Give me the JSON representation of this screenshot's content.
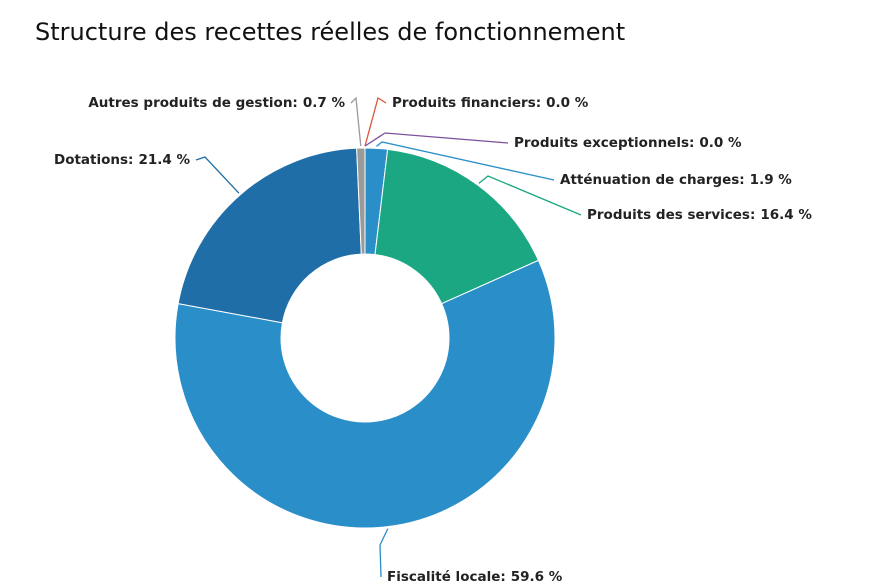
{
  "chart_data": {
    "type": "donut",
    "title": "Structure des recettes réelles de fonctionnement",
    "categories": [
      "Produits financiers:",
      "Produits exceptionnels:",
      "Atténuation de charges:",
      "Produits des services:",
      "Fiscalité locale:",
      "Dotations:",
      "Autres produits de gestion:"
    ],
    "values": [
      0.0,
      0.0,
      1.9,
      16.4,
      59.6,
      21.4,
      0.7
    ],
    "value_labels": [
      "0.0 %",
      "0.0 %",
      "1.9 %",
      "16.4 %",
      "59.6 %",
      "21.4 %",
      "0.7 %"
    ],
    "colors": [
      "#e0533c",
      "#7b4f9d",
      "#2a8fc9",
      "#1aa781",
      "#2a8fc9",
      "#1f6ea8",
      "#9a9a9a"
    ]
  }
}
